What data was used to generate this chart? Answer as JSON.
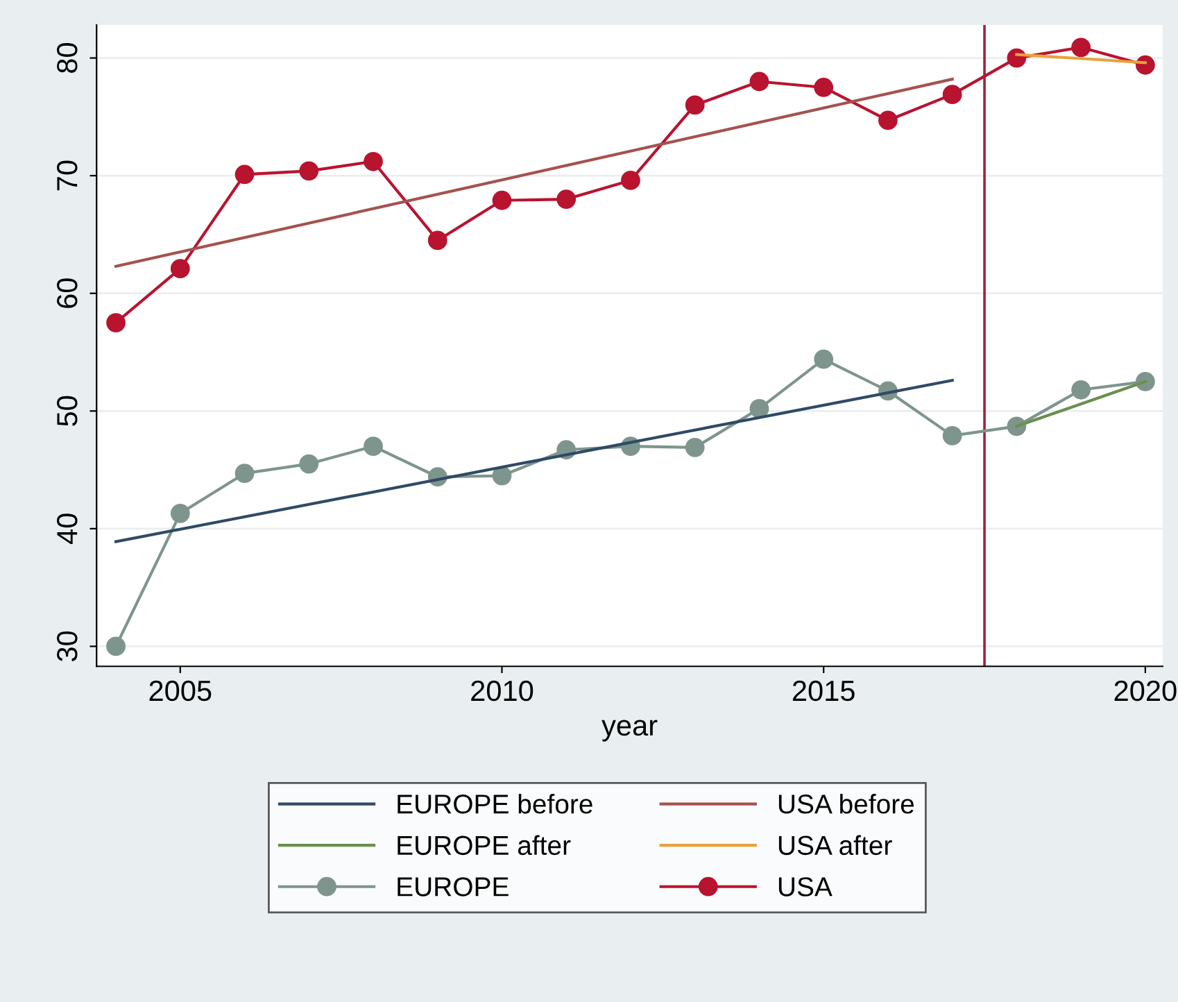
{
  "chart_data": {
    "type": "line",
    "xlabel": "year",
    "xlim": [
      2003.7,
      2020.27
    ],
    "ylim": [
      28.3,
      82.8
    ],
    "xticks": [
      2005,
      2010,
      2015,
      2020
    ],
    "yticks": [
      30,
      40,
      50,
      60,
      70,
      80
    ],
    "grid": "y",
    "legend": "bottom",
    "series": [
      {
        "name": "EUROPE before",
        "color": "#2f4a66",
        "x": [
          2004,
          2017
        ],
        "values": [
          38.9,
          52.6
        ],
        "marker": "none"
      },
      {
        "name": "EUROPE after",
        "color": "#6b8f4e",
        "x": [
          2018,
          2020
        ],
        "values": [
          48.7,
          52.5
        ],
        "marker": "none"
      },
      {
        "name": "EUROPE",
        "color": "#7e958d",
        "x": [
          2004,
          2005,
          2006,
          2007,
          2008,
          2009,
          2010,
          2011,
          2012,
          2013,
          2014,
          2015,
          2016,
          2017,
          2018,
          2019,
          2020
        ],
        "values": [
          30,
          41.3,
          44.7,
          45.5,
          47.0,
          44.4,
          44.5,
          46.7,
          47.0,
          46.9,
          50.2,
          54.4,
          51.7,
          47.9,
          48.7,
          51.8,
          52.5
        ],
        "marker": "circle"
      },
      {
        "name": "USA before",
        "color": "#a5524f",
        "x": [
          2004,
          2017
        ],
        "values": [
          62.3,
          78.2
        ],
        "marker": "none"
      },
      {
        "name": "USA after",
        "color": "#e8a23c",
        "x": [
          2018,
          2020
        ],
        "values": [
          80.3,
          79.6
        ],
        "marker": "none"
      },
      {
        "name": "USA",
        "color": "#b8142f",
        "x": [
          2004,
          2005,
          2006,
          2007,
          2008,
          2009,
          2010,
          2011,
          2012,
          2013,
          2014,
          2015,
          2016,
          2017,
          2018,
          2019,
          2020
        ],
        "values": [
          57.5,
          62.1,
          70.1,
          70.4,
          71.2,
          64.5,
          67.9,
          68.0,
          69.6,
          76.0,
          78.0,
          77.5,
          74.7,
          76.9,
          80.0,
          80.9,
          79.4
        ],
        "marker": "circle"
      }
    ],
    "ref_lines": [
      {
        "axis": "x",
        "value": 2017.5,
        "color": "#a3203c"
      }
    ]
  }
}
